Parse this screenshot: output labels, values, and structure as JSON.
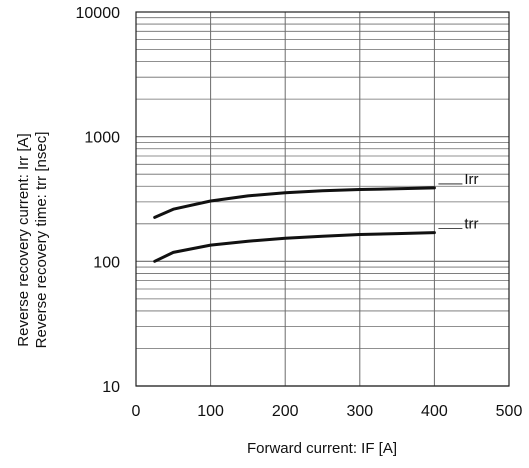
{
  "chart_data": {
    "type": "line",
    "title": "",
    "xlabel": "Forward current: IF [A]",
    "ylabel_lines": [
      "Reverse recovery current: Irr [A]",
      "Reverse recovery time: trr [nsec]"
    ],
    "xlim": [
      0,
      500
    ],
    "ylim": [
      10,
      10000
    ],
    "yscale": "log",
    "grid": true,
    "legend": "none",
    "x_ticks": [
      0,
      100,
      200,
      300,
      400,
      500
    ],
    "x_tick_labels": [
      "0",
      "100",
      "200",
      "300",
      "400",
      "500"
    ],
    "y_ticks": [
      10,
      100,
      1000,
      10000
    ],
    "y_tick_labels": [
      "10",
      "100",
      "1000",
      "10000"
    ],
    "series": [
      {
        "name": "Irr",
        "x": [
          25,
          50,
          100,
          150,
          200,
          250,
          300,
          350,
          400
        ],
        "y": [
          225,
          262,
          305,
          335,
          355,
          368,
          377,
          382,
          388
        ]
      },
      {
        "name": "trr",
        "x": [
          25,
          50,
          100,
          150,
          200,
          250,
          300,
          350,
          400
        ],
        "y": [
          100,
          118,
          135,
          145,
          153,
          159,
          164,
          167,
          170
        ]
      }
    ],
    "colors": {
      "line": "#111111",
      "grid": "#6b6b6b",
      "axis": "#222222"
    }
  }
}
